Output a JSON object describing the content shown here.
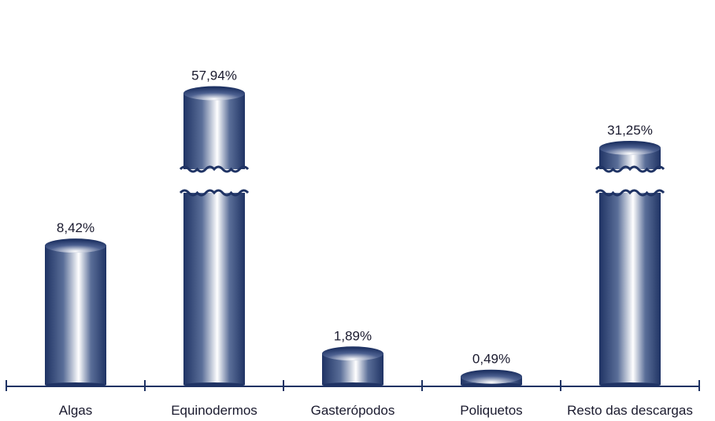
{
  "chart_data": {
    "type": "bar",
    "style": "cylinder",
    "axis_break": true,
    "categories": [
      "Algas",
      "Equinodermos",
      "Gasterópodos",
      "Poliquetos",
      "Resto das descargas"
    ],
    "values": [
      8.42,
      57.94,
      1.89,
      0.49,
      31.25
    ],
    "value_labels": [
      "8,42%",
      "57,94%",
      "1,89%",
      "0,49%",
      "31,25%"
    ],
    "broken": [
      false,
      true,
      false,
      false,
      true
    ],
    "title": "",
    "xlabel": "",
    "ylabel": "",
    "grid": false,
    "legend": "none",
    "colors": {
      "bar_dark": "#1f3364",
      "bar_light": "#ffffff",
      "axis": "#1f3364"
    }
  }
}
